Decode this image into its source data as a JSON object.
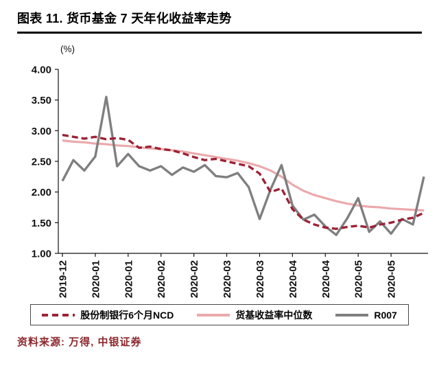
{
  "header": {
    "title": "图表 11. 货币基金 7 天年化收益率走势"
  },
  "chart_data": {
    "type": "line",
    "title": "货币基金7天年化收益率走势",
    "unit_label": "(%)",
    "ylim": [
      1.0,
      4.0
    ],
    "ytick_step": 0.5,
    "yticks": [
      "4.00",
      "3.50",
      "3.00",
      "2.50",
      "2.00",
      "1.50",
      "1.00"
    ],
    "xticks": [
      "2019-12",
      "2020-01",
      "2020-01",
      "2020-02",
      "2020-02",
      "2020-03",
      "2020-03",
      "2020-04",
      "2020-04",
      "2020-05",
      "2020-05"
    ],
    "grid": false,
    "legend_position": "bottom",
    "axis_color": "#111111",
    "series": [
      {
        "name": "股份制银行6个月NCD",
        "color": "#9D2235",
        "style": "dashed",
        "values": [
          2.93,
          2.9,
          2.87,
          2.9,
          2.86,
          2.88,
          2.85,
          2.72,
          2.74,
          2.7,
          2.68,
          2.63,
          2.57,
          2.52,
          2.54,
          2.5,
          2.46,
          2.42,
          2.3,
          2.0,
          2.06,
          1.72,
          1.55,
          1.47,
          1.42,
          1.4,
          1.43,
          1.45,
          1.42,
          1.47,
          1.5,
          1.55,
          1.58,
          1.66
        ]
      },
      {
        "name": "货基收益率中位数",
        "color": "#EBA9AC",
        "style": "solid",
        "values": [
          2.84,
          2.82,
          2.81,
          2.79,
          2.78,
          2.76,
          2.75,
          2.73,
          2.71,
          2.7,
          2.68,
          2.66,
          2.63,
          2.6,
          2.57,
          2.54,
          2.51,
          2.47,
          2.42,
          2.35,
          2.25,
          2.12,
          2.02,
          1.95,
          1.9,
          1.85,
          1.81,
          1.78,
          1.76,
          1.75,
          1.73,
          1.72,
          1.71,
          1.7
        ]
      },
      {
        "name": "R007",
        "color": "#7F7F7F",
        "style": "solid",
        "values": [
          2.18,
          2.52,
          2.35,
          2.58,
          3.55,
          2.42,
          2.62,
          2.42,
          2.35,
          2.42,
          2.28,
          2.4,
          2.33,
          2.44,
          2.26,
          2.24,
          2.31,
          2.08,
          1.56,
          2.04,
          2.44,
          1.78,
          1.55,
          1.63,
          1.44,
          1.3,
          1.57,
          1.9,
          1.35,
          1.52,
          1.32,
          1.56,
          1.47,
          2.25
        ]
      }
    ]
  },
  "footer": {
    "source": "资料来源: 万得, 中银证券"
  }
}
